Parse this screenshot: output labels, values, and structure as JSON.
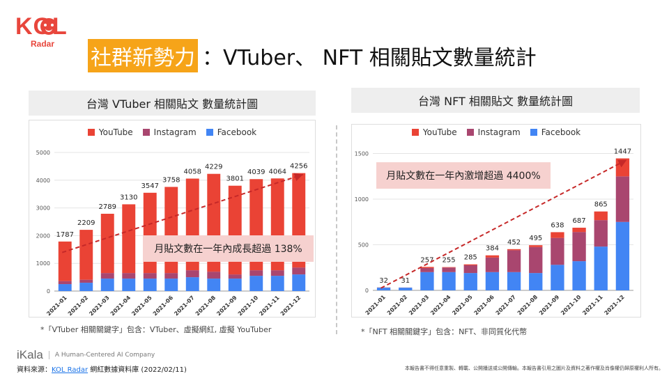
{
  "logo": {
    "main": "KOL",
    "sub": "Radar"
  },
  "title": {
    "highlight": "社群新勢力",
    "rest": "：VTuber、 NFT 相關貼文數量統計"
  },
  "colors": {
    "youtube": "#ea4335",
    "instagram": "#a9466f",
    "facebook": "#4285f4",
    "trend": "#c62828",
    "accent": "#f6a419",
    "callout_bg": "#f6d1cf"
  },
  "chart_data": [
    {
      "type": "bar",
      "stacked": true,
      "title": "台灣 VTuber 相關貼文 數量統計圖",
      "categories": [
        "2021-01",
        "2021-02",
        "2021-03",
        "2021-04",
        "2021-05",
        "2021-06",
        "2021-07",
        "2021-08",
        "2021-09",
        "2021-10",
        "2021-11",
        "2021-12"
      ],
      "series": [
        {
          "name": "YouTube",
          "values": [
            1427,
            1799,
            2139,
            2480,
            2897,
            3108,
            3308,
            3529,
            3201,
            3289,
            3314,
            3406
          ]
        },
        {
          "name": "Instagram",
          "values": [
            110,
            110,
            200,
            200,
            200,
            200,
            250,
            250,
            150,
            200,
            200,
            250
          ]
        },
        {
          "name": "Facebook",
          "values": [
            250,
            300,
            450,
            450,
            450,
            450,
            500,
            450,
            450,
            550,
            550,
            600
          ]
        }
      ],
      "totals": [
        1787,
        2209,
        2789,
        3130,
        3547,
        3758,
        4058,
        4229,
        3801,
        4039,
        4064,
        4256
      ],
      "ylim": [
        0,
        5000
      ],
      "yticks": [
        0,
        1000,
        2000,
        3000,
        4000,
        5000
      ],
      "legend": "top",
      "grid": true,
      "annotation": "月貼文數在一年內成長超過 138%",
      "trendline": true
    },
    {
      "type": "bar",
      "stacked": true,
      "title": "台灣 NFT 相關貼文 數量統計圖",
      "categories": [
        "2021-01",
        "2021-02",
        "2021-03",
        "2021-04",
        "2021-05",
        "2021-06",
        "2021-07",
        "2021-08",
        "2021-09",
        "2021-10",
        "2021-11",
        "2021-12"
      ],
      "series": [
        {
          "name": "YouTube",
          "values": [
            2,
            1,
            12,
            5,
            10,
            24,
            12,
            20,
            63,
            47,
            95,
            197
          ]
        },
        {
          "name": "Instagram",
          "values": [
            0,
            0,
            45,
            50,
            85,
            160,
            240,
            285,
            295,
            320,
            290,
            500
          ]
        },
        {
          "name": "Facebook",
          "values": [
            30,
            30,
            200,
            200,
            190,
            200,
            200,
            190,
            280,
            320,
            480,
            750
          ]
        }
      ],
      "totals": [
        32,
        31,
        257,
        255,
        285,
        384,
        452,
        495,
        638,
        687,
        865,
        1447
      ],
      "ylim": [
        0,
        1550
      ],
      "yticks": [
        0,
        500,
        1000,
        1500
      ],
      "legend": "top",
      "grid": true,
      "annotation": "月貼文數在一年內激增超過 4400%",
      "trendline": true
    }
  ],
  "notes": {
    "left": "*「VTuber 相關關鍵字」包含：VTuber、虛擬網紅, 虛擬 YouTuber",
    "right": "*「NFT 相關關鍵字」包含：NFT、非同質化代幣"
  },
  "footer": {
    "brand": "iKala",
    "tagline": "A Human-Centered AI Company",
    "source_prefix": "資料來源：",
    "source_link": "KOL Radar",
    "source_suffix": " 網紅數據資料庫 (2022/02/11)",
    "disclaimer": "本報告書不得任意重製、轉載、公開播送或公開傳輸。本報告書引用之圖片及資料之著作權及肖像權仍歸原權利人所有。"
  }
}
